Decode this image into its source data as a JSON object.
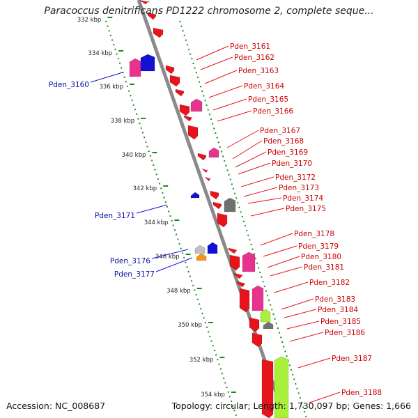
{
  "title": "Paracoccus denitrificans PD1222 chromosome 2, complete seque...",
  "footer": {
    "accession_label": "Accession:",
    "accession": "NC_008687",
    "topology_label": "Topology:",
    "topology": "circular",
    "length_label": "Length:",
    "length": "1,730,097 bp",
    "genes_label": "Genes:",
    "genes": "1,666"
  },
  "colors": {
    "forward_cds": "#e8141b",
    "reverse_cds": "#1212d6",
    "pink_domain": "#e8338e",
    "grey_domain": "#707070",
    "light_grey_domain": "#c0c0c0",
    "green_domain": "#a8f03a",
    "orange_domain": "#f7931d",
    "backbone": "#8a8a8a",
    "ruler": "#1a8a1a",
    "label_forward": "#cc0000",
    "label_reverse": "#0a0aa8"
  },
  "ruler_ticks": [
    "332 kbp",
    "334 kbp",
    "336 kbp",
    "338 kbp",
    "340 kbp",
    "342 kbp",
    "344 kbp",
    "346 kbp",
    "348 kbp",
    "350 kbp",
    "352 kbp",
    "354 kbp"
  ],
  "genes_left": [
    "Pden_3160",
    "Pden_3171",
    "Pden_3176",
    "Pden_3177"
  ],
  "genes_right": [
    "Pden_3161",
    "Pden_3162",
    "Pden_3163",
    "Pden_3164",
    "Pden_3165",
    "Pden_3166",
    "Pden_3167",
    "Pden_3168",
    "Pden_3169",
    "Pden_3170",
    "Pden_3172",
    "Pden_3173",
    "Pden_3174",
    "Pden_3175",
    "Pden_3178",
    "Pden_3179",
    "Pden_3180",
    "Pden_3181",
    "Pden_3182",
    "Pden_3183",
    "Pden_3184",
    "Pden_3185",
    "Pden_3186",
    "Pden_3187",
    "Pden_3188"
  ]
}
